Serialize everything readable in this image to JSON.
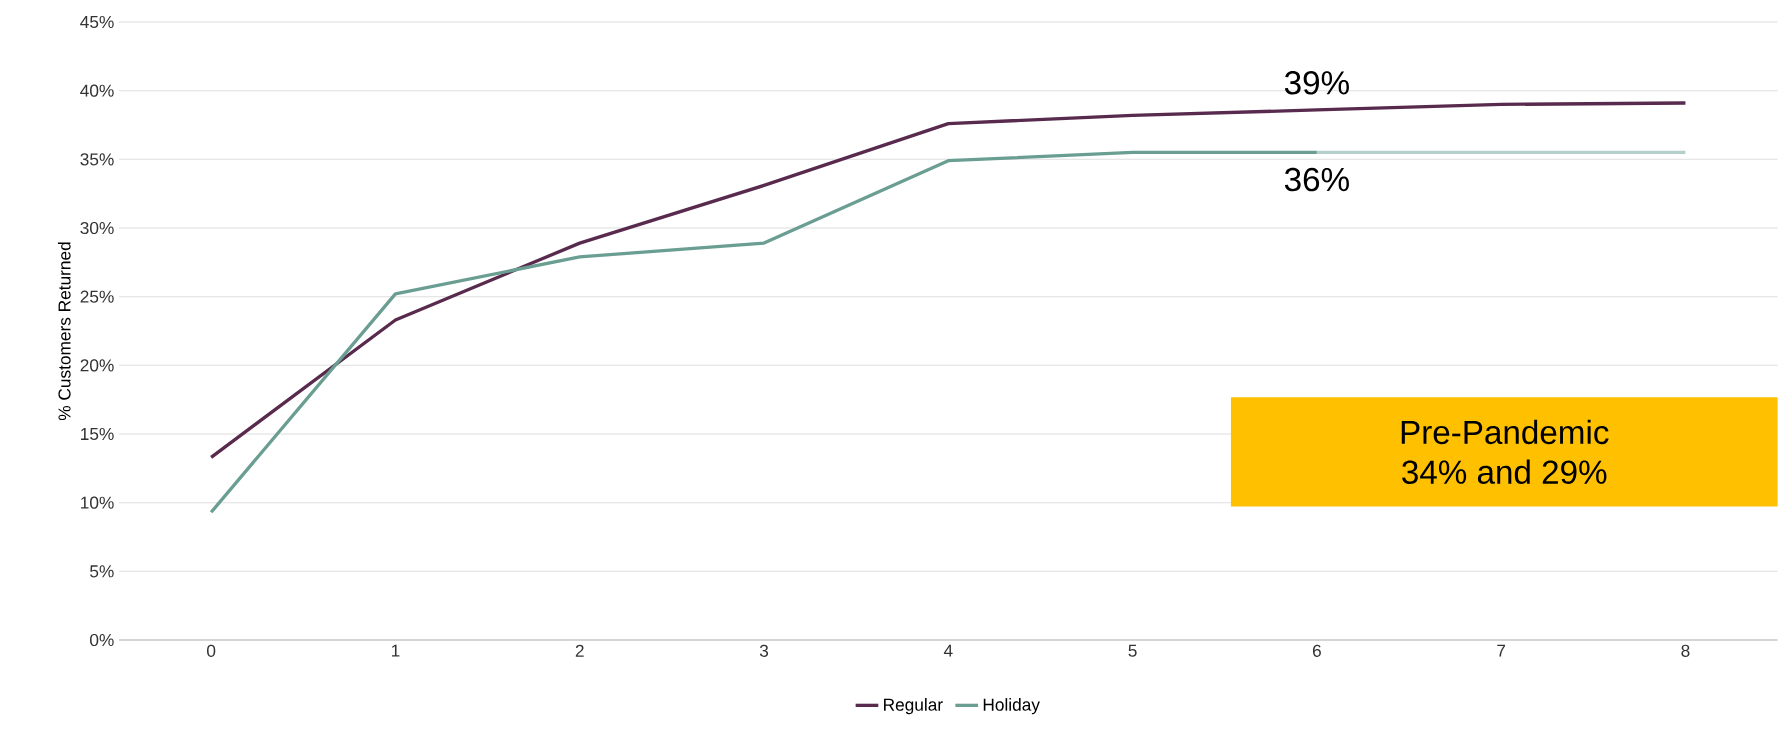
{
  "chart_data": {
    "type": "line",
    "ylabel": "% Customers Returned",
    "x": [
      0,
      1,
      2,
      3,
      4,
      5,
      6,
      7,
      8
    ],
    "series": [
      {
        "name": "Regular",
        "color": "#582a4d",
        "values": [
          13.3,
          23.3,
          28.9,
          33.1,
          37.6,
          38.2,
          38.6,
          39.0,
          39.1
        ]
      },
      {
        "name": "Holiday",
        "color": "#6a9e92",
        "x": [
          0,
          1,
          2,
          3,
          4,
          5,
          6
        ],
        "values": [
          9.3,
          25.2,
          27.9,
          28.9,
          34.9,
          35.5,
          35.5
        ]
      },
      {
        "color": "#b5d0ca",
        "x": [
          6,
          7,
          8
        ],
        "values": [
          35.5,
          35.5,
          35.5
        ]
      }
    ],
    "xlim": [
      -0.5,
      8.5
    ],
    "xticks": [
      0,
      1,
      2,
      3,
      4,
      5,
      6,
      7,
      8
    ],
    "ylim": [
      0,
      45
    ],
    "yticks": [
      {
        "value": 0,
        "label": "0%"
      },
      {
        "value": 5,
        "label": "5%"
      },
      {
        "value": 10,
        "label": "10%"
      },
      {
        "value": 15,
        "label": "15%"
      },
      {
        "value": 20,
        "label": "20%"
      },
      {
        "value": 25,
        "label": "25%"
      },
      {
        "value": 30,
        "label": "30%"
      },
      {
        "value": 35,
        "label": "35%"
      },
      {
        "value": 40,
        "label": "40%"
      },
      {
        "value": 45,
        "label": "45%"
      }
    ],
    "grid": "y",
    "legend": "bottom",
    "marker": "none",
    "line_style": "solid",
    "annotations": [
      {
        "text": "39%",
        "x": 6,
        "y": 38.6
      },
      {
        "text": "36%",
        "x": 6,
        "y": 35.5
      },
      "Pre-Pandemic",
      "34% and 29%"
    ]
  }
}
